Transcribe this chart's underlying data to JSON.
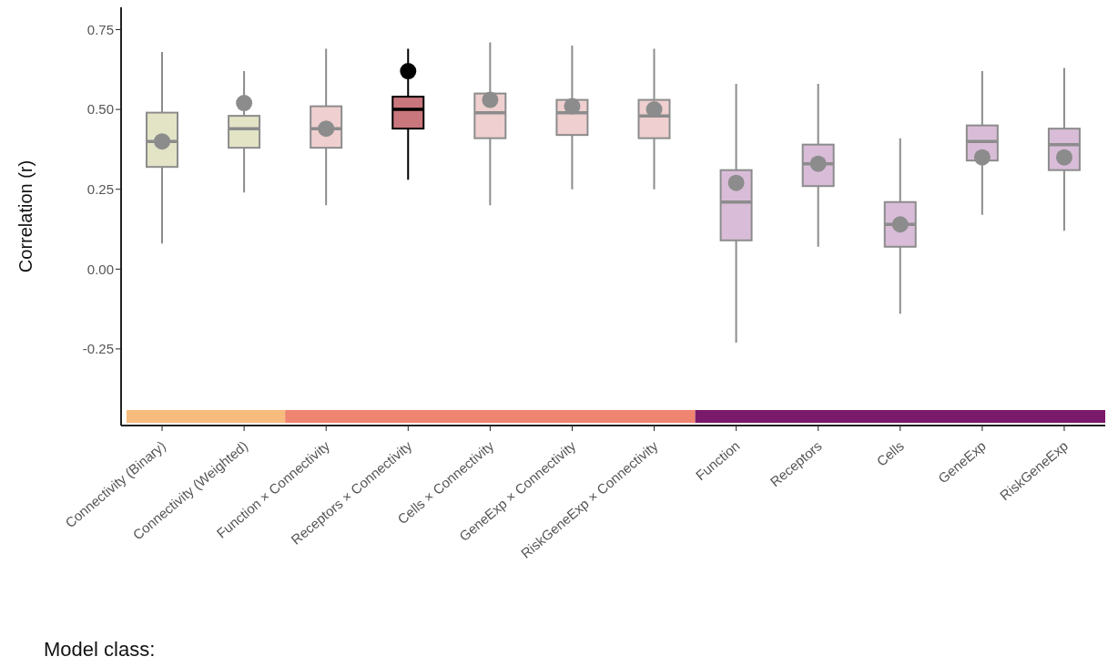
{
  "chart_data": {
    "type": "box",
    "ylabel": "Correlation (r)",
    "categories": [
      "Connectivity (Binary)",
      "Connectivity (Weighted)",
      "Function × Connectivity",
      "Receptors × Connectivity",
      "Cells × Connectivity",
      "GeneExp × Connectivity",
      "RiskGeneExp × Connectivity",
      "Function",
      "Receptors",
      "Cells",
      "GeneExp",
      "RiskGeneExp"
    ],
    "colors": [
      "#e3e4c6",
      "#e3e4c6",
      "#efcfcf",
      "#c9777d",
      "#efcfcf",
      "#efcfcf",
      "#efcfcf",
      "#d9bdd8",
      "#d9bdd8",
      "#d9bdd8",
      "#d9bdd8",
      "#d9bdd8"
    ],
    "series": [
      {
        "color": "#8c8c8c",
        "boxes": [
          {
            "low": 0.08,
            "q1": 0.32,
            "median": 0.4,
            "q3": 0.49,
            "high": 0.68,
            "mean": 0.4
          },
          {
            "low": 0.24,
            "q1": 0.38,
            "median": 0.44,
            "q3": 0.48,
            "high": 0.62,
            "mean": 0.52
          },
          {
            "low": 0.2,
            "q1": 0.38,
            "median": 0.44,
            "q3": 0.51,
            "high": 0.69,
            "mean": 0.44
          },
          null,
          {
            "low": 0.2,
            "q1": 0.41,
            "median": 0.49,
            "q3": 0.55,
            "high": 0.71,
            "mean": 0.53
          },
          {
            "low": 0.25,
            "q1": 0.42,
            "median": 0.49,
            "q3": 0.53,
            "high": 0.7,
            "mean": 0.51
          },
          {
            "low": 0.25,
            "q1": 0.41,
            "median": 0.48,
            "q3": 0.53,
            "high": 0.69,
            "mean": 0.5
          },
          {
            "low": -0.23,
            "q1": 0.09,
            "median": 0.21,
            "q3": 0.31,
            "high": 0.58,
            "mean": 0.27
          },
          {
            "low": 0.07,
            "q1": 0.26,
            "median": 0.33,
            "q3": 0.39,
            "high": 0.58,
            "mean": 0.33
          },
          {
            "low": -0.14,
            "q1": 0.07,
            "median": 0.14,
            "q3": 0.21,
            "high": 0.41,
            "mean": 0.14
          },
          {
            "low": 0.17,
            "q1": 0.34,
            "median": 0.4,
            "q3": 0.45,
            "high": 0.62,
            "mean": 0.35
          },
          {
            "low": 0.12,
            "q1": 0.31,
            "median": 0.39,
            "q3": 0.44,
            "high": 0.63,
            "mean": 0.35
          }
        ]
      },
      {
        "color": "#000000",
        "boxes": [
          null,
          null,
          null,
          {
            "low": 0.28,
            "q1": 0.44,
            "median": 0.5,
            "q3": 0.54,
            "high": 0.69,
            "mean": 0.62
          },
          null,
          null,
          null,
          null,
          null,
          null,
          null,
          null
        ]
      }
    ],
    "ylim": [
      -0.49,
      0.82
    ],
    "yticks": [
      0.75,
      {
        "value": 0.5,
        "label": "0.50"
      },
      0.25,
      {
        "value": 0,
        "label": "0.00"
      },
      -0.25
    ],
    "annotations": [
      "Model class:"
    ]
  }
}
